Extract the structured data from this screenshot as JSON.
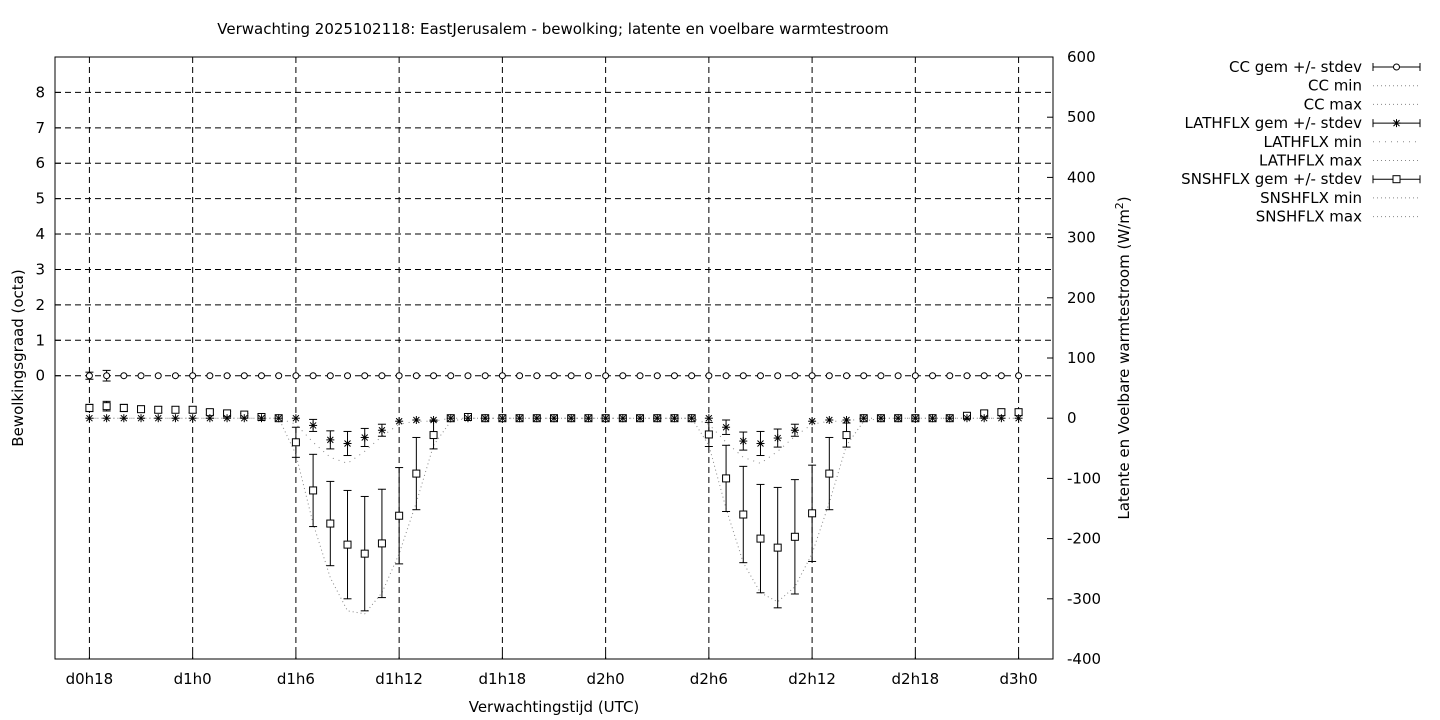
{
  "chart_data": {
    "type": "line",
    "title": "Verwachting 2025102118: EastJerusalem - bewolking; latente en voelbare warmtestroom",
    "xlabel": "Verwachtingstijd (UTC)",
    "ylabel_left": "Bewolkingsgraad (octa)",
    "ylabel_right_main": "Latente en Voelbare warmtestroom (W/m",
    "ylabel_right_sup": "2",
    "ylabel_right_tail": ")",
    "x_unit": "forecast hours since d0h18",
    "xlim": [
      -2,
      56
    ],
    "ylim_left": [
      -8,
      9
    ],
    "ylim_right": [
      -400,
      600
    ],
    "x_ticks": [
      {
        "x": 0,
        "label": "d0h18"
      },
      {
        "x": 6,
        "label": "d1h0"
      },
      {
        "x": 12,
        "label": "d1h6"
      },
      {
        "x": 18,
        "label": "d1h12"
      },
      {
        "x": 24,
        "label": "d1h18"
      },
      {
        "x": 30,
        "label": "d2h0"
      },
      {
        "x": 36,
        "label": "d2h6"
      },
      {
        "x": 42,
        "label": "d2h12"
      },
      {
        "x": 48,
        "label": "d2h18"
      },
      {
        "x": 54,
        "label": "d3h0"
      }
    ],
    "y_left_ticks": [
      0,
      1,
      2,
      3,
      4,
      5,
      6,
      7,
      8
    ],
    "y_right_ticks": [
      600,
      500,
      400,
      300,
      200,
      100,
      0,
      -100,
      -200,
      -300,
      -400
    ],
    "grid": true,
    "legend_position": "right-outside",
    "x": [
      0,
      1,
      2,
      3,
      4,
      5,
      6,
      7,
      8,
      9,
      10,
      11,
      12,
      13,
      14,
      15,
      16,
      17,
      18,
      19,
      20,
      21,
      22,
      23,
      24,
      25,
      26,
      27,
      28,
      29,
      30,
      31,
      32,
      33,
      34,
      35,
      36,
      37,
      38,
      39,
      40,
      41,
      42,
      43,
      44,
      45,
      46,
      47,
      48,
      49,
      50,
      51,
      52,
      53,
      54
    ],
    "series": [
      {
        "name": "CC gem +/- stdev",
        "marker": "circle",
        "axis": "left",
        "mean": [
          0,
          0,
          0,
          0,
          0,
          0,
          0,
          0,
          0,
          0,
          0,
          0,
          0,
          0,
          0,
          0,
          0,
          0,
          0,
          0,
          0,
          0,
          0,
          0,
          0,
          0,
          0,
          0,
          0,
          0,
          0,
          0,
          0,
          0,
          0,
          0,
          0,
          0,
          0,
          0,
          0,
          0,
          0,
          0,
          0,
          0,
          0,
          0,
          0,
          0,
          0,
          0,
          0,
          0,
          0
        ],
        "stdev": [
          0.1,
          0.15,
          0,
          0,
          0,
          0,
          0,
          0,
          0,
          0,
          0,
          0,
          0,
          0,
          0,
          0,
          0,
          0,
          0,
          0,
          0,
          0,
          0,
          0,
          0,
          0,
          0,
          0,
          0,
          0,
          0,
          0,
          0,
          0,
          0,
          0,
          0,
          0,
          0,
          0,
          0,
          0,
          0,
          0,
          0,
          0,
          0,
          0,
          0,
          0,
          0,
          0,
          0,
          0,
          0
        ]
      },
      {
        "name": "CC min",
        "axis": "left"
      },
      {
        "name": "CC max",
        "axis": "left"
      },
      {
        "name": "LATHFLX gem +/- stdev",
        "marker": "star",
        "axis": "right",
        "mean": [
          0,
          0,
          0,
          0,
          0,
          0,
          0,
          0,
          0,
          0,
          0,
          0,
          0,
          -12,
          -36,
          -42,
          -32,
          -20,
          -5,
          -3,
          -3,
          0,
          0,
          0,
          0,
          0,
          0,
          0,
          0,
          0,
          0,
          0,
          0,
          0,
          0,
          0,
          0,
          -15,
          -38,
          -42,
          -33,
          -20,
          -5,
          -3,
          -3,
          0,
          0,
          0,
          0,
          0,
          0,
          0,
          0,
          0,
          0
        ],
        "stdev": [
          0,
          0,
          0,
          0,
          0,
          0,
          0,
          0,
          0,
          0,
          0,
          0,
          0,
          10,
          15,
          20,
          15,
          10,
          0,
          0,
          0,
          0,
          0,
          0,
          0,
          0,
          0,
          0,
          0,
          0,
          0,
          0,
          0,
          0,
          0,
          0,
          0,
          12,
          15,
          20,
          15,
          10,
          0,
          0,
          0,
          0,
          0,
          0,
          0,
          0,
          0,
          0,
          0,
          0,
          0
        ]
      },
      {
        "name": "LATHFLX min",
        "axis": "right",
        "values": [
          0,
          0,
          0,
          0,
          0,
          0,
          0,
          0,
          0,
          0,
          0,
          0,
          -10,
          -40,
          -65,
          -75,
          -55,
          -30,
          -10,
          -5,
          -5,
          0,
          0,
          0,
          0,
          0,
          0,
          0,
          0,
          0,
          0,
          0,
          0,
          0,
          0,
          0,
          -10,
          -40,
          -65,
          -75,
          -55,
          -30,
          -10,
          -5,
          -5,
          0,
          0,
          0,
          0,
          0,
          0,
          0,
          0,
          0,
          0
        ]
      },
      {
        "name": "LATHFLX max",
        "axis": "right"
      },
      {
        "name": "SNSHFLX gem +/- stdev",
        "marker": "square",
        "axis": "right",
        "mean": [
          17,
          20,
          17,
          15,
          14,
          14,
          14,
          10,
          8,
          6,
          2,
          0,
          -40,
          -120,
          -175,
          -210,
          -225,
          -208,
          -162,
          -92,
          -28,
          0,
          2,
          0,
          0,
          0,
          0,
          0,
          0,
          0,
          0,
          0,
          0,
          0,
          0,
          0,
          -27,
          -100,
          -160,
          -200,
          -215,
          -197,
          -158,
          -92,
          -28,
          0,
          0,
          0,
          0,
          0,
          0,
          4,
          8,
          10,
          10
        ],
        "stdev": [
          6,
          8,
          6,
          5,
          5,
          5,
          5,
          4,
          3,
          2,
          1,
          0,
          25,
          60,
          70,
          90,
          95,
          90,
          80,
          60,
          23,
          0,
          0,
          0,
          0,
          0,
          0,
          0,
          0,
          0,
          0,
          0,
          0,
          0,
          0,
          0,
          20,
          55,
          80,
          90,
          100,
          95,
          80,
          60,
          20,
          0,
          0,
          0,
          0,
          0,
          0,
          2,
          4,
          5,
          5
        ]
      },
      {
        "name": "SNSHFLX min",
        "axis": "right",
        "values": [
          0,
          0,
          0,
          0,
          0,
          0,
          0,
          0,
          0,
          0,
          0,
          0,
          -60,
          -175,
          -265,
          -320,
          -325,
          -290,
          -225,
          -140,
          -45,
          -5,
          0,
          0,
          0,
          0,
          0,
          0,
          0,
          0,
          0,
          0,
          0,
          0,
          0,
          0,
          -45,
          -150,
          -240,
          -290,
          -305,
          -280,
          -225,
          -140,
          -45,
          -5,
          0,
          0,
          0,
          0,
          0,
          0,
          0,
          0,
          0
        ]
      },
      {
        "name": "SNSHFLX max",
        "axis": "right"
      }
    ]
  }
}
